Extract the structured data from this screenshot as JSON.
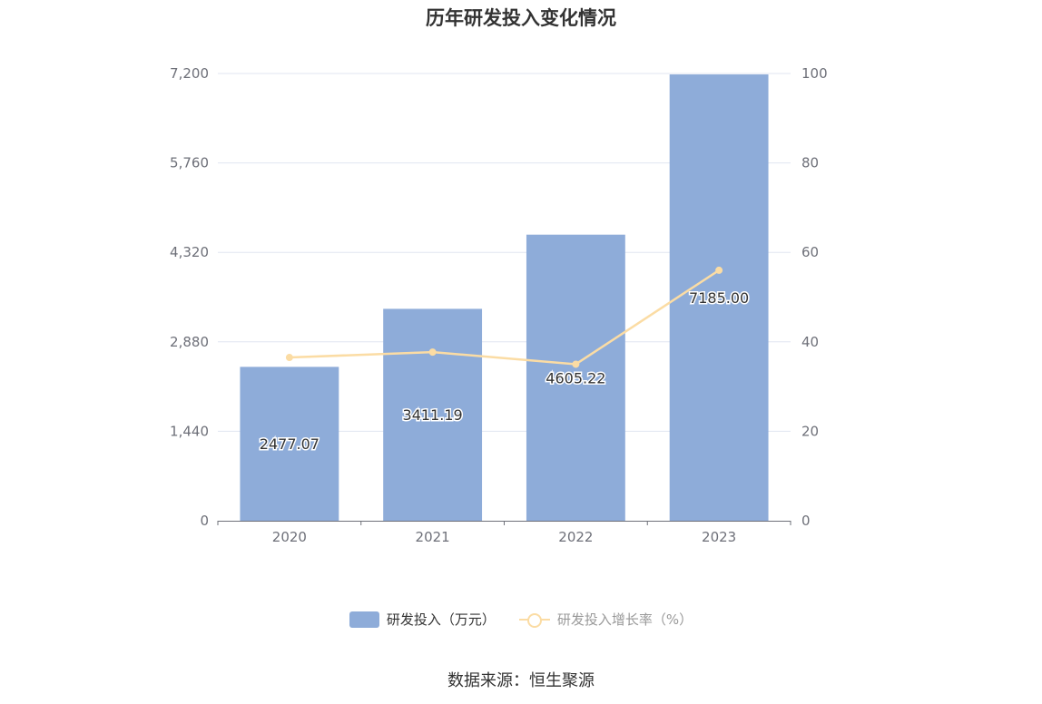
{
  "chart_data": {
    "type": "bar",
    "title": "历年研发投入变化情况",
    "categories": [
      "2020",
      "2021",
      "2022",
      "2023"
    ],
    "series": [
      {
        "name": "研发投入（万元）",
        "type": "bar",
        "axis": "left",
        "values": [
          2477.07,
          3411.19,
          4605.22,
          7185.0
        ],
        "labels": [
          "2477.07",
          "3411.19",
          "4605.22",
          "7185.00"
        ],
        "color": "#8eacd9"
      },
      {
        "name": "研发投入增长率（%）",
        "type": "line",
        "axis": "right",
        "values": [
          36.5,
          37.7,
          35.0,
          56.0
        ],
        "color": "#fbdca4"
      }
    ],
    "y_left": {
      "ylim": [
        0,
        7200
      ],
      "ticks": [
        "0",
        "1,440",
        "2,880",
        "4,320",
        "5,760",
        "7,200"
      ]
    },
    "y_right": {
      "ylim": [
        0,
        100
      ],
      "ticks": [
        "0",
        "20",
        "40",
        "60",
        "80",
        "100"
      ]
    },
    "grid": true,
    "legend_position": "bottom"
  },
  "source_text": "数据来源：恒生聚源"
}
